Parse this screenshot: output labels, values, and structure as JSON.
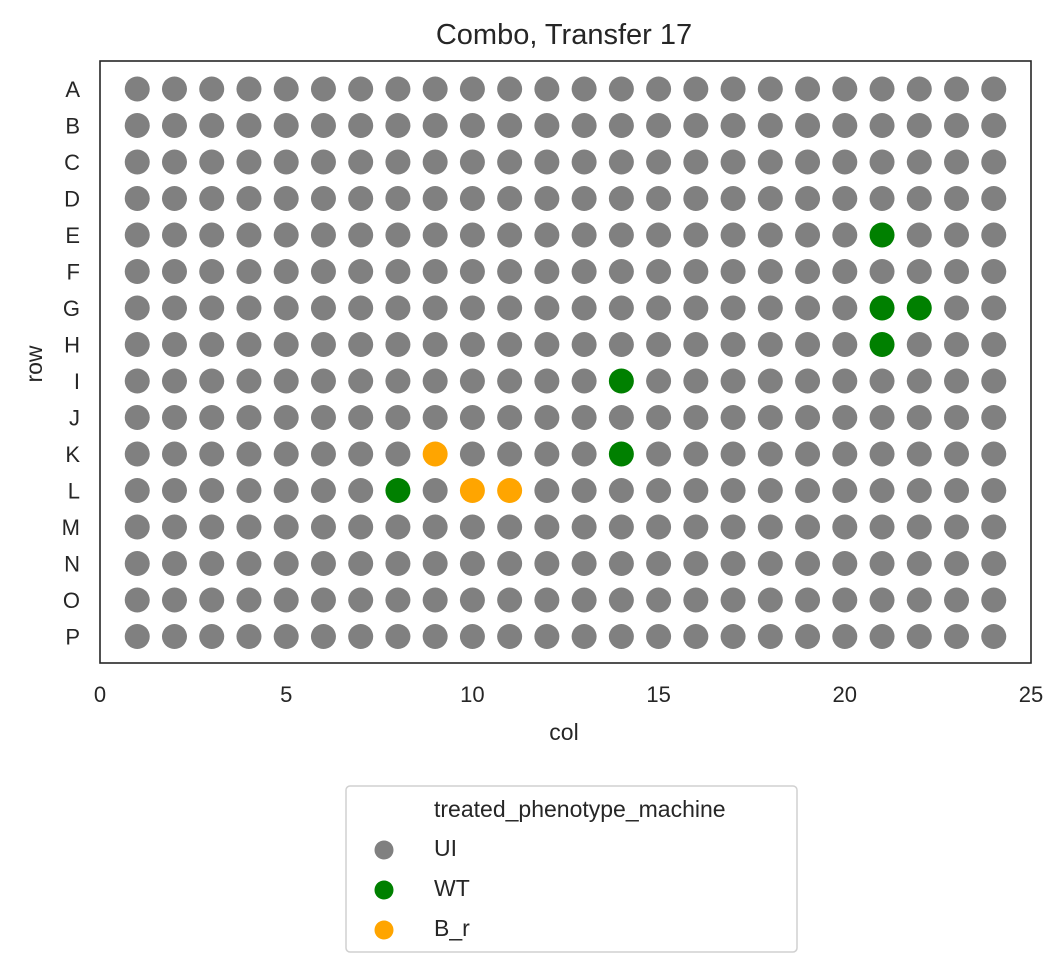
{
  "chart_data": {
    "type": "scatter",
    "title": "Combo, Transfer 17",
    "xlabel": "col",
    "ylabel": "row",
    "xlim": [
      0,
      25
    ],
    "xticks": [
      0,
      5,
      10,
      15,
      20,
      25
    ],
    "rows": [
      "A",
      "B",
      "C",
      "D",
      "E",
      "F",
      "G",
      "H",
      "I",
      "J",
      "K",
      "L",
      "M",
      "N",
      "O",
      "P"
    ],
    "cols": [
      1,
      2,
      3,
      4,
      5,
      6,
      7,
      8,
      9,
      10,
      11,
      12,
      13,
      14,
      15,
      16,
      17,
      18,
      19,
      20,
      21,
      22,
      23,
      24
    ],
    "grid": false,
    "legend": {
      "title": "treated_phenotype_machine",
      "placement": "below",
      "entries": [
        {
          "name": "UI",
          "color": "#808080"
        },
        {
          "name": "WT",
          "color": "#008000"
        },
        {
          "name": "B_r",
          "color": "#ffa500"
        }
      ]
    },
    "default_category": "UI",
    "highlighted_points": [
      {
        "row": "E",
        "col": 21,
        "category": "WT"
      },
      {
        "row": "G",
        "col": 21,
        "category": "WT"
      },
      {
        "row": "G",
        "col": 22,
        "category": "WT"
      },
      {
        "row": "H",
        "col": 21,
        "category": "WT"
      },
      {
        "row": "I",
        "col": 14,
        "category": "WT"
      },
      {
        "row": "K",
        "col": 9,
        "category": "B_r"
      },
      {
        "row": "K",
        "col": 14,
        "category": "WT"
      },
      {
        "row": "L",
        "col": 8,
        "category": "WT"
      },
      {
        "row": "L",
        "col": 10,
        "category": "B_r"
      },
      {
        "row": "L",
        "col": 11,
        "category": "B_r"
      }
    ]
  }
}
